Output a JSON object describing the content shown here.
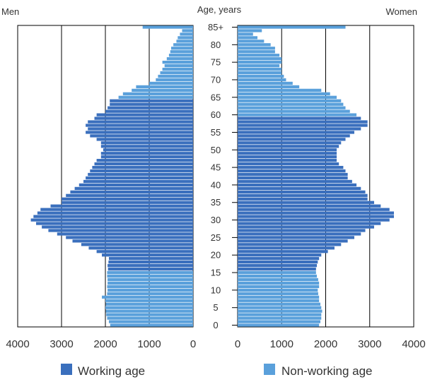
{
  "chart_data": {
    "type": "bar",
    "subtype": "population-pyramid",
    "left_label": "Men",
    "center_label": "Age, years",
    "right_label": "Women",
    "age_tick_labels": [
      "85+",
      "80",
      "75",
      "70",
      "65",
      "60",
      "55",
      "50",
      "45",
      "40",
      "35",
      "30",
      "25",
      "20",
      "15",
      "10",
      "5",
      "0"
    ],
    "men_axis_ticks": [
      "4000",
      "3000",
      "2000",
      "1000",
      "0"
    ],
    "women_axis_ticks": [
      "0",
      "1000",
      "2000",
      "3000",
      "4000"
    ],
    "xlim": [
      0,
      4000
    ],
    "grid": "vertical",
    "legend": {
      "placement": "bottom",
      "items": [
        {
          "label": "Working age",
          "color": "#3a6fbd"
        },
        {
          "label": "Non-working age",
          "color": "#5aa0db"
        }
      ]
    },
    "ages": [
      0,
      1,
      2,
      3,
      4,
      5,
      6,
      7,
      8,
      9,
      10,
      11,
      12,
      13,
      14,
      15,
      16,
      17,
      18,
      19,
      20,
      21,
      22,
      23,
      24,
      25,
      26,
      27,
      28,
      29,
      30,
      31,
      32,
      33,
      34,
      35,
      36,
      37,
      38,
      39,
      40,
      41,
      42,
      43,
      44,
      45,
      46,
      47,
      48,
      49,
      50,
      51,
      52,
      53,
      54,
      55,
      56,
      57,
      58,
      59,
      60,
      61,
      62,
      63,
      64,
      65,
      66,
      67,
      68,
      69,
      70,
      71,
      72,
      73,
      74,
      75,
      76,
      77,
      78,
      79,
      80,
      81,
      82,
      83,
      84,
      "85+"
    ],
    "working_age_range": {
      "men": [
        16,
        64
      ],
      "women": [
        16,
        59
      ]
    },
    "series": [
      {
        "name": "Men",
        "values": [
          1890,
          1920,
          1960,
          1980,
          1990,
          2000,
          1990,
          2000,
          2080,
          1960,
          1950,
          1960,
          1950,
          1950,
          1960,
          1960,
          1940,
          1950,
          1930,
          1920,
          2080,
          2200,
          2380,
          2550,
          2750,
          2900,
          3100,
          3300,
          3450,
          3580,
          3700,
          3640,
          3550,
          3480,
          3250,
          3000,
          3000,
          2900,
          2800,
          2700,
          2600,
          2500,
          2450,
          2400,
          2350,
          2300,
          2250,
          2200,
          2100,
          2100,
          2050,
          2100,
          2100,
          2200,
          2350,
          2450,
          2400,
          2450,
          2400,
          2250,
          2200,
          2000,
          1950,
          1900,
          1900,
          1700,
          1600,
          1400,
          1300,
          1000,
          850,
          800,
          750,
          700,
          650,
          700,
          600,
          550,
          520,
          500,
          450,
          380,
          350,
          300,
          250,
          1150
        ]
      },
      {
        "name": "Women",
        "values": [
          1850,
          1880,
          1900,
          1900,
          1920,
          1900,
          1880,
          1850,
          1850,
          1830,
          1820,
          1850,
          1850,
          1830,
          1800,
          1780,
          1780,
          1800,
          1820,
          1850,
          1900,
          2050,
          2200,
          2350,
          2500,
          2650,
          2800,
          2900,
          3100,
          3250,
          3450,
          3550,
          3550,
          3450,
          3250,
          3100,
          2950,
          2950,
          2900,
          2800,
          2700,
          2600,
          2500,
          2500,
          2450,
          2400,
          2300,
          2250,
          2250,
          2250,
          2250,
          2300,
          2350,
          2450,
          2550,
          2650,
          2800,
          2950,
          2950,
          2800,
          2700,
          2550,
          2450,
          2400,
          2350,
          2250,
          2100,
          1900,
          1400,
          1250,
          1100,
          1050,
          1000,
          1000,
          950,
          1000,
          1000,
          950,
          850,
          850,
          750,
          600,
          450,
          350,
          550,
          2450
        ]
      }
    ]
  }
}
